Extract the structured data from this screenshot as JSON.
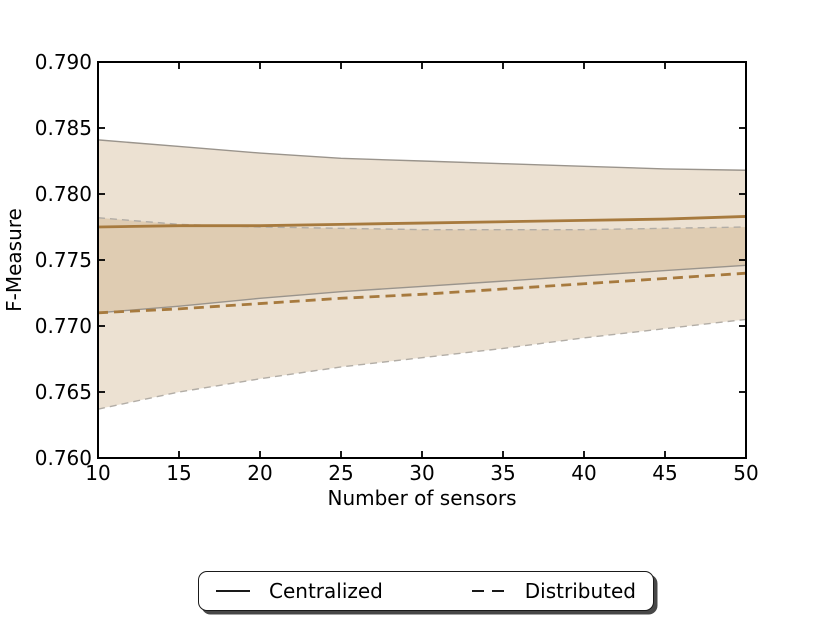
{
  "figure": {
    "background": "#ffffff"
  },
  "chart_data": {
    "type": "line",
    "title": "",
    "xlabel": "Number of sensors",
    "ylabel": "F-Measure",
    "xlim": [
      10,
      50
    ],
    "ylim": [
      0.76,
      0.79
    ],
    "grid": false,
    "tick_direction": "in",
    "x_ticks": [
      10,
      15,
      20,
      25,
      30,
      35,
      40,
      45,
      50
    ],
    "y_ticks": [
      0.76,
      0.765,
      0.77,
      0.775,
      0.78,
      0.785,
      0.79
    ],
    "y_tick_labels": [
      "0.760",
      "0.765",
      "0.770",
      "0.775",
      "0.780",
      "0.785",
      "0.790"
    ],
    "x": [
      10,
      15,
      20,
      25,
      30,
      35,
      40,
      45,
      50
    ],
    "band_color": "#bf9c6b",
    "band_alpha": 0.3,
    "series": [
      {
        "name": "Centralized",
        "line_style": "solid",
        "color": "#a77a3e",
        "edge_color": "#9a948c",
        "band_edge_style": "solid",
        "values": [
          0.7775,
          0.7776,
          0.7776,
          0.7777,
          0.7778,
          0.7779,
          0.778,
          0.7781,
          0.7783
        ],
        "ci_upper": [
          0.7841,
          0.7836,
          0.7831,
          0.7827,
          0.7825,
          0.7823,
          0.7821,
          0.7819,
          0.7818
        ],
        "ci_lower": [
          0.771,
          0.7715,
          0.7721,
          0.7726,
          0.773,
          0.7734,
          0.7738,
          0.7742,
          0.7746
        ]
      },
      {
        "name": "Distributed",
        "line_style": "dashed",
        "color": "#a77a3e",
        "edge_color": "#b2ada6",
        "band_edge_style": "dashed",
        "values": [
          0.771,
          0.7713,
          0.7717,
          0.7721,
          0.7724,
          0.7728,
          0.7732,
          0.7736,
          0.774
        ],
        "ci_upper": [
          0.7782,
          0.7777,
          0.7775,
          0.7774,
          0.7773,
          0.7773,
          0.7773,
          0.7774,
          0.7775
        ],
        "ci_lower": [
          0.7637,
          0.765,
          0.766,
          0.7669,
          0.7676,
          0.7683,
          0.7691,
          0.7698,
          0.7705
        ]
      }
    ],
    "legend": {
      "position": "below-chart",
      "entries": [
        {
          "label": "Centralized",
          "line": "solid"
        },
        {
          "label": "Distributed",
          "line": "dashed"
        }
      ]
    }
  }
}
